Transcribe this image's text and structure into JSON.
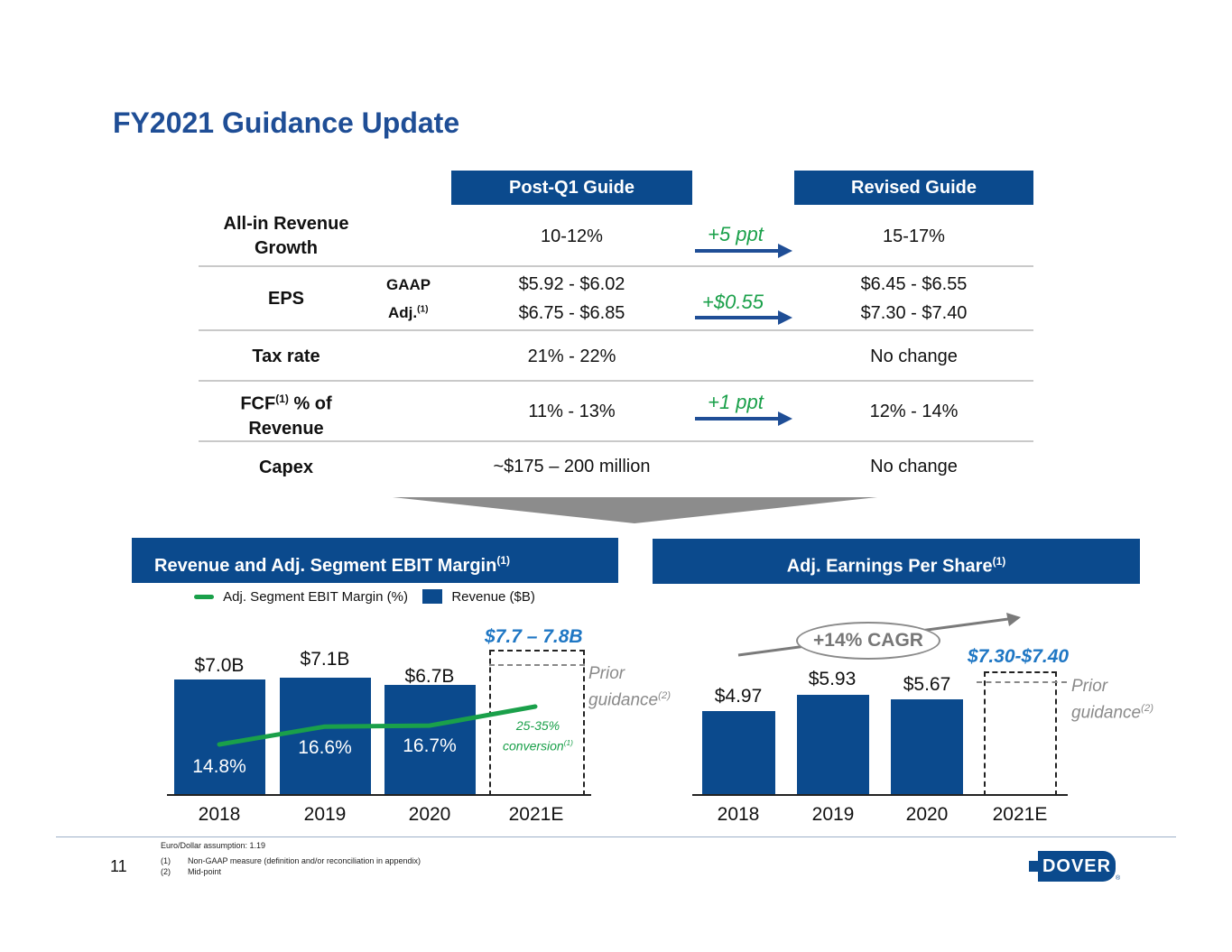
{
  "title": "FY2021 Guidance Update",
  "table": {
    "col_post": "Post-Q1 Guide",
    "col_revised": "Revised Guide",
    "rows": {
      "revenue": {
        "label_l1": "All-in Revenue",
        "label_l2": "Growth",
        "post": "10-12%",
        "delta": "+5 ppt",
        "revised": "15-17%"
      },
      "eps": {
        "label": "EPS",
        "gaap_label": "GAAP",
        "adj_label": "Adj.",
        "adj_sup": "(1)",
        "post_gaap": "$5.92 - $6.02",
        "post_adj": "$6.75 - $6.85",
        "delta": "+$0.55",
        "revised_gaap": "$6.45 - $6.55",
        "revised_adj": "$7.30 - $7.40"
      },
      "tax": {
        "label": "Tax rate",
        "post": "21% - 22%",
        "revised": "No change"
      },
      "fcf": {
        "label_a": "FCF",
        "label_sup": "(1)",
        "label_b": " % of",
        "label_l2": "Revenue",
        "post": "11% - 13%",
        "delta": "+1 ppt",
        "revised": "12% - 14%"
      },
      "capex": {
        "label": "Capex",
        "post": "~$175 – 200 million",
        "revised": "No change"
      }
    }
  },
  "left_panel": {
    "title": "Revenue and Adj. Segment EBIT Margin",
    "title_sup": "(1)",
    "legend_margin": "Adj. Segment EBIT Margin (%)",
    "legend_revenue": "Revenue ($B)",
    "guidance": "$7.7 – 7.8B",
    "prior_l1": "Prior",
    "prior_l2": "guidance",
    "prior_sup": "(2)",
    "conversion_l1": "25-35%",
    "conversion_l2": "conversion",
    "conversion_sup": "(1)"
  },
  "right_panel": {
    "title": "Adj. Earnings Per Share",
    "title_sup": "(1)",
    "cagr": "+14% CAGR",
    "guidance": "$7.30-$7.40",
    "prior_l1": "Prior",
    "prior_l2": "guidance",
    "prior_sup": "(2)"
  },
  "chart_data": [
    {
      "type": "bar",
      "title": "Revenue and Adj. Segment EBIT Margin",
      "categories": [
        "2018",
        "2019",
        "2020",
        "2021E"
      ],
      "series": [
        {
          "name": "Revenue ($B)",
          "values": [
            7.0,
            7.1,
            6.7,
            null
          ],
          "labels": [
            "$7.0B",
            "$7.1B",
            "$6.7B",
            ""
          ]
        },
        {
          "name": "Adj. Segment EBIT Margin (%)",
          "values": [
            14.8,
            16.6,
            16.7,
            null
          ],
          "labels": [
            "14.8%",
            "16.6%",
            "16.7%",
            ""
          ]
        }
      ],
      "guidance_2021E": "$7.7 – 7.8B"
    },
    {
      "type": "bar",
      "title": "Adj. Earnings Per Share",
      "categories": [
        "2018",
        "2019",
        "2020",
        "2021E"
      ],
      "values": [
        4.97,
        5.93,
        5.67,
        null
      ],
      "labels": [
        "$4.97",
        "$5.93",
        "$5.67",
        ""
      ],
      "guidance_2021E": "$7.30-$7.40"
    }
  ],
  "years": [
    "2018",
    "2019",
    "2020",
    "2021E"
  ],
  "footnotes": {
    "fx": "Euro/Dollar assumption: 1.19",
    "n1_num": "(1)",
    "n1_text": "Non-GAAP measure (definition and/or reconciliation in appendix)",
    "n2_num": "(2)",
    "n2_text": "Mid-point"
  },
  "page_number": "11",
  "logo_text": "DOVER",
  "colors": {
    "brand_blue": "#0b4a8d",
    "title_blue": "#1f4e96",
    "green": "#1aa04a",
    "guide_blue": "#1f77c4"
  }
}
